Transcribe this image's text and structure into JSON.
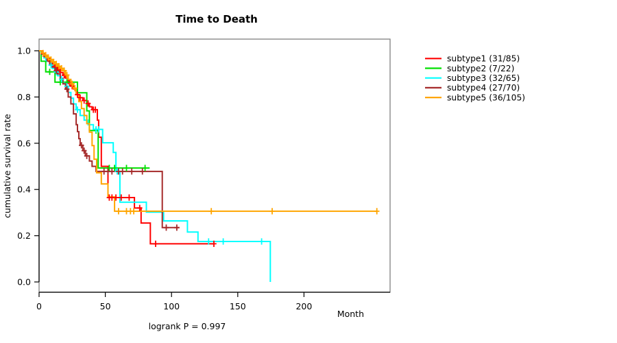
{
  "title": "Time to Death",
  "y_axis": {
    "label": "cumulative survival rate",
    "ticks": [
      "0.0",
      "0.2",
      "0.4",
      "0.6",
      "0.8",
      "1.0"
    ]
  },
  "x_axis": {
    "label": "Month",
    "ticks": [
      "0",
      "50",
      "100",
      "150",
      "200"
    ]
  },
  "footer": {
    "logrank_text": "logrank P = 0.997"
  },
  "legend": {
    "position": "right-outside",
    "items": [
      {
        "label": "subtype1 (31/85)",
        "color": "#FF0000"
      },
      {
        "label": "subtype2 (7/22)",
        "color": "#00E000"
      },
      {
        "label": "subtype3 (32/65)",
        "color": "#00FFFF"
      },
      {
        "label": "subtype4 (27/70)",
        "color": "#A52A2A"
      },
      {
        "label": "subtype5 (36/105)",
        "color": "#FFA500"
      }
    ]
  },
  "chart_data": {
    "type": "line",
    "variant": "kaplan-meier-step",
    "title": "Time to Death",
    "xlabel": "Month",
    "ylabel": "cumulative survival rate",
    "xlim": [
      0,
      265
    ],
    "ylim": [
      0,
      1.05
    ],
    "x_ticks": [
      0,
      50,
      100,
      150,
      200
    ],
    "y_ticks": [
      0,
      0.2,
      0.4,
      0.6,
      0.8,
      1.0
    ],
    "grid": false,
    "annotation": "logrank P = 0.997",
    "series": [
      {
        "name": "subtype1",
        "display": "subtype1 (31/85)",
        "color": "#FF0000",
        "events": 31,
        "n": 85,
        "end_month": 132.5,
        "steps": [
          [
            0,
            1.0
          ],
          [
            2,
            0.988
          ],
          [
            4,
            0.976
          ],
          [
            6,
            0.965
          ],
          [
            8,
            0.953
          ],
          [
            10,
            0.941
          ],
          [
            12,
            0.93
          ],
          [
            14,
            0.918
          ],
          [
            16,
            0.906
          ],
          [
            18,
            0.894
          ],
          [
            20,
            0.882
          ],
          [
            22,
            0.859
          ],
          [
            24,
            0.847
          ],
          [
            26,
            0.835
          ],
          [
            28,
            0.81
          ],
          [
            30,
            0.797
          ],
          [
            33,
            0.785
          ],
          [
            36,
            0.772
          ],
          [
            38,
            0.758
          ],
          [
            40,
            0.745
          ],
          [
            44,
            0.7
          ],
          [
            45,
            0.626
          ],
          [
            47,
            0.5
          ],
          [
            52,
            0.365
          ],
          [
            72,
            0.32
          ],
          [
            77,
            0.255
          ],
          [
            84,
            0.165
          ]
        ],
        "censors": [
          [
            3,
            0.988
          ],
          [
            7,
            0.965
          ],
          [
            11,
            0.941
          ],
          [
            15,
            0.918
          ],
          [
            19,
            0.894
          ],
          [
            23,
            0.859
          ],
          [
            25,
            0.847
          ],
          [
            29,
            0.81
          ],
          [
            31,
            0.797
          ],
          [
            34,
            0.785
          ],
          [
            37,
            0.772
          ],
          [
            41,
            0.745
          ],
          [
            42.5,
            0.745
          ],
          [
            53,
            0.365
          ],
          [
            55,
            0.365
          ],
          [
            58,
            0.365
          ],
          [
            62,
            0.365
          ],
          [
            68,
            0.365
          ],
          [
            76,
            0.32
          ],
          [
            88,
            0.165
          ],
          [
            132,
            0.165
          ]
        ]
      },
      {
        "name": "subtype2",
        "display": "subtype2 (7/22)",
        "color": "#00E000",
        "events": 7,
        "n": 22,
        "end_month": 83.5,
        "steps": [
          [
            0,
            1.0
          ],
          [
            1.5,
            0.955
          ],
          [
            5,
            0.909
          ],
          [
            12,
            0.864
          ],
          [
            29,
            0.818
          ],
          [
            36,
            0.74
          ],
          [
            38,
            0.655
          ],
          [
            44.6,
            0.493
          ]
        ],
        "censors": [
          [
            8,
            0.909
          ],
          [
            16,
            0.864
          ],
          [
            21,
            0.864
          ],
          [
            43,
            0.655
          ],
          [
            53,
            0.493
          ],
          [
            57,
            0.493
          ],
          [
            66,
            0.493
          ],
          [
            80,
            0.493
          ]
        ]
      },
      {
        "name": "subtype3",
        "display": "subtype3 (32/65)",
        "color": "#00FFFF",
        "events": 32,
        "n": 65,
        "end_month": null,
        "steps": [
          [
            0,
            1.0
          ],
          [
            2,
            0.985
          ],
          [
            4,
            0.969
          ],
          [
            6,
            0.954
          ],
          [
            8,
            0.938
          ],
          [
            10,
            0.923
          ],
          [
            12,
            0.908
          ],
          [
            14,
            0.892
          ],
          [
            16,
            0.877
          ],
          [
            18,
            0.862
          ],
          [
            20,
            0.846
          ],
          [
            22,
            0.82
          ],
          [
            24,
            0.795
          ],
          [
            26,
            0.77
          ],
          [
            28,
            0.745
          ],
          [
            31,
            0.72
          ],
          [
            34,
            0.7
          ],
          [
            37,
            0.68
          ],
          [
            41,
            0.66
          ],
          [
            48,
            0.602
          ],
          [
            56,
            0.56
          ],
          [
            58,
            0.478
          ],
          [
            61,
            0.345
          ],
          [
            81,
            0.302
          ],
          [
            94,
            0.264
          ],
          [
            112,
            0.216
          ],
          [
            120,
            0.175
          ],
          [
            174.6,
            0.0
          ]
        ],
        "censors": [
          [
            5,
            0.969
          ],
          [
            9,
            0.938
          ],
          [
            13,
            0.908
          ],
          [
            17,
            0.877
          ],
          [
            21,
            0.846
          ],
          [
            29,
            0.745
          ],
          [
            43,
            0.66
          ],
          [
            45,
            0.66
          ],
          [
            59,
            0.478
          ],
          [
            128,
            0.175
          ],
          [
            139,
            0.175
          ],
          [
            168,
            0.175
          ]
        ]
      },
      {
        "name": "subtype4",
        "display": "subtype4 (27/70)",
        "color": "#A52A2A",
        "events": 27,
        "n": 70,
        "end_month": 106,
        "steps": [
          [
            0,
            1.0
          ],
          [
            2,
            0.986
          ],
          [
            4,
            0.971
          ],
          [
            6,
            0.957
          ],
          [
            8,
            0.943
          ],
          [
            10,
            0.929
          ],
          [
            12,
            0.914
          ],
          [
            14,
            0.9
          ],
          [
            16,
            0.88
          ],
          [
            18,
            0.857
          ],
          [
            20,
            0.834
          ],
          [
            22,
            0.8
          ],
          [
            24,
            0.77
          ],
          [
            26,
            0.727
          ],
          [
            28,
            0.68
          ],
          [
            29,
            0.65
          ],
          [
            30,
            0.62
          ],
          [
            31,
            0.591
          ],
          [
            33,
            0.568
          ],
          [
            35,
            0.545
          ],
          [
            38,
            0.523
          ],
          [
            40,
            0.5
          ],
          [
            43,
            0.478
          ],
          [
            93,
            0.235
          ]
        ],
        "censors": [
          [
            13,
            0.914
          ],
          [
            21,
            0.834
          ],
          [
            32,
            0.591
          ],
          [
            34,
            0.568
          ],
          [
            36,
            0.545
          ],
          [
            49,
            0.478
          ],
          [
            52,
            0.478
          ],
          [
            55,
            0.478
          ],
          [
            60,
            0.478
          ],
          [
            63,
            0.478
          ],
          [
            70,
            0.478
          ],
          [
            78,
            0.478
          ],
          [
            96,
            0.235
          ],
          [
            104,
            0.235
          ]
        ]
      },
      {
        "name": "subtype5",
        "display": "subtype5 (36/105)",
        "color": "#FFA500",
        "events": 36,
        "n": 105,
        "end_month": 255,
        "steps": [
          [
            0,
            1.0
          ],
          [
            2,
            0.99
          ],
          [
            4,
            0.981
          ],
          [
            6,
            0.971
          ],
          [
            8,
            0.962
          ],
          [
            10,
            0.952
          ],
          [
            12,
            0.943
          ],
          [
            14,
            0.933
          ],
          [
            16,
            0.924
          ],
          [
            18,
            0.914
          ],
          [
            20,
            0.895
          ],
          [
            22,
            0.876
          ],
          [
            24,
            0.857
          ],
          [
            26,
            0.838
          ],
          [
            28,
            0.81
          ],
          [
            30,
            0.78
          ],
          [
            32,
            0.75
          ],
          [
            34,
            0.72
          ],
          [
            36,
            0.685
          ],
          [
            38,
            0.648
          ],
          [
            40,
            0.59
          ],
          [
            41.5,
            0.531
          ],
          [
            43.5,
            0.472
          ],
          [
            47,
            0.424
          ],
          [
            52,
            0.368
          ],
          [
            57,
            0.306
          ]
        ],
        "censors": [
          [
            3,
            0.99
          ],
          [
            5,
            0.981
          ],
          [
            7,
            0.971
          ],
          [
            9,
            0.962
          ],
          [
            11,
            0.952
          ],
          [
            13,
            0.943
          ],
          [
            15,
            0.933
          ],
          [
            17,
            0.924
          ],
          [
            19,
            0.914
          ],
          [
            21,
            0.895
          ],
          [
            25,
            0.857
          ],
          [
            27,
            0.838
          ],
          [
            60,
            0.306
          ],
          [
            66,
            0.306
          ],
          [
            69,
            0.306
          ],
          [
            71.5,
            0.306
          ],
          [
            130,
            0.306
          ],
          [
            176,
            0.306
          ],
          [
            255,
            0.306
          ]
        ]
      }
    ]
  }
}
